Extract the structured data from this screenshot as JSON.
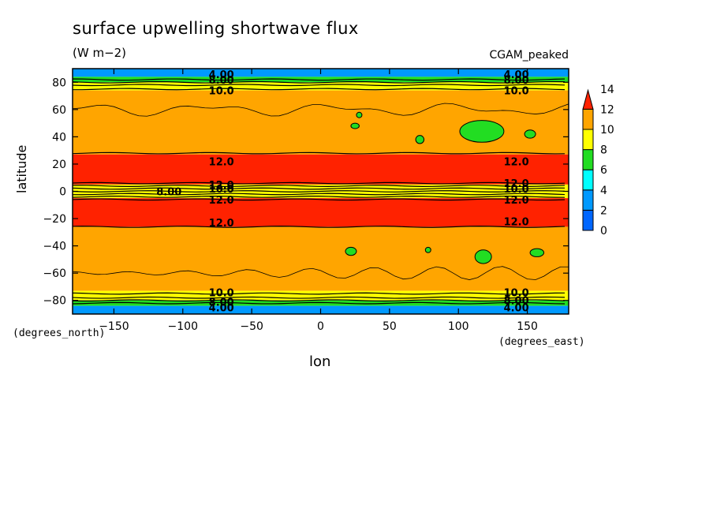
{
  "chart_data": {
    "type": "heatmap",
    "title": "surface upwelling shortwave flux",
    "units": "(W m−2)",
    "model_label": "CGAM_peaked",
    "xlabel": "lon",
    "ylabel": "latitude",
    "x_units_label": "(degrees_east)",
    "y_units_label": "(degrees_north)",
    "xlim": [
      -180,
      180
    ],
    "ylim": [
      -90,
      90
    ],
    "x_ticks": [
      -150,
      -100,
      -50,
      0,
      50,
      100,
      150
    ],
    "y_ticks": [
      -80,
      -60,
      -40,
      -20,
      0,
      20,
      40,
      60,
      80
    ],
    "x_tick_labels": [
      "−150",
      "−100",
      "−50",
      "0",
      "50",
      "100",
      "150"
    ],
    "y_tick_labels": [
      "−80",
      "−60",
      "−40",
      "−20",
      "0",
      "20",
      "40",
      "60",
      "80"
    ],
    "colorbar": {
      "levels": [
        0,
        2,
        4,
        6,
        8,
        10,
        12,
        14
      ],
      "level_labels": [
        "0",
        "2",
        "4",
        "6",
        "8",
        "10",
        "12",
        "14"
      ],
      "colors": [
        "#0066ff",
        "#0099ff",
        "#00ffff",
        "#22dd22",
        "#ffff00",
        "#ffa500",
        "#ff2200"
      ],
      "extend": "max"
    },
    "zonal_bands": [
      {
        "lat_min": 84,
        "lat_max": 90,
        "value": 3
      },
      {
        "lat_min": 80,
        "lat_max": 84,
        "value": 7
      },
      {
        "lat_min": 74,
        "lat_max": 80,
        "value": 9
      },
      {
        "lat_min": 27,
        "lat_max": 74,
        "value": 11
      },
      {
        "lat_min": 5,
        "lat_max": 27,
        "value": 13
      },
      {
        "lat_min": -5,
        "lat_max": 5,
        "value": 9
      },
      {
        "lat_min": -26,
        "lat_max": -5,
        "value": 13
      },
      {
        "lat_min": -73,
        "lat_max": -26,
        "value": 11
      },
      {
        "lat_min": -80,
        "lat_max": -73,
        "value": 9
      },
      {
        "lat_min": -84,
        "lat_max": -80,
        "value": 7
      },
      {
        "lat_min": -90,
        "lat_max": -84,
        "value": 3
      }
    ],
    "contour_lines_lat": [
      82,
      80,
      78,
      75,
      28,
      6,
      4,
      2,
      0,
      -2,
      -4,
      -6,
      -26,
      -75,
      -78,
      -80,
      -82
    ],
    "green_patches": [
      {
        "lon": 117,
        "lat": 44,
        "rx": 16,
        "ry": 8
      },
      {
        "lon": 72,
        "lat": 38,
        "rx": 3,
        "ry": 3
      },
      {
        "lon": 28,
        "lat": 56,
        "rx": 2,
        "ry": 2
      },
      {
        "lon": 25,
        "lat": 48,
        "rx": 3,
        "ry": 2
      },
      {
        "lon": 152,
        "lat": 42,
        "rx": 4,
        "ry": 3
      },
      {
        "lon": 118,
        "lat": -48,
        "rx": 6,
        "ry": 5
      },
      {
        "lon": 22,
        "lat": -44,
        "rx": 4,
        "ry": 3
      },
      {
        "lon": 157,
        "lat": -45,
        "rx": 5,
        "ry": 3
      },
      {
        "lon": 78,
        "lat": -43,
        "rx": 2,
        "ry": 2
      }
    ],
    "contour_labels": [
      {
        "text": "10.0",
        "lon": -72,
        "lat": 74
      },
      {
        "text": "10.0",
        "lon": 142,
        "lat": 74
      },
      {
        "text": "8.00",
        "lon": -72,
        "lat": 82
      },
      {
        "text": "8.00",
        "lon": 142,
        "lat": 82
      },
      {
        "text": "4.00",
        "lon": -72,
        "lat": 86
      },
      {
        "text": "4.00",
        "lon": 142,
        "lat": 86
      },
      {
        "text": "12.0",
        "lon": -72,
        "lat": 22
      },
      {
        "text": "12.0",
        "lon": 142,
        "lat": 22
      },
      {
        "text": "12.0",
        "lon": -72,
        "lat": 5
      },
      {
        "text": "12.0",
        "lon": 142,
        "lat": 6
      },
      {
        "text": "10.0",
        "lon": -72,
        "lat": 2
      },
      {
        "text": "10.0",
        "lon": 142,
        "lat": 2
      },
      {
        "text": "8.00",
        "lon": -110,
        "lat": 0
      },
      {
        "text": "12.0",
        "lon": -72,
        "lat": -6
      },
      {
        "text": "12.0",
        "lon": 142,
        "lat": -6
      },
      {
        "text": "12.0",
        "lon": -72,
        "lat": -23
      },
      {
        "text": "12.0",
        "lon": 142,
        "lat": -22
      },
      {
        "text": "10.0",
        "lon": -72,
        "lat": -74
      },
      {
        "text": "10.0",
        "lon": 142,
        "lat": -74
      },
      {
        "text": "8.00",
        "lon": -72,
        "lat": -81
      },
      {
        "text": "8.00",
        "lon": 142,
        "lat": -80
      },
      {
        "text": "4.00",
        "lon": -72,
        "lat": -85
      },
      {
        "text": "4.00",
        "lon": 142,
        "lat": -85
      }
    ]
  }
}
